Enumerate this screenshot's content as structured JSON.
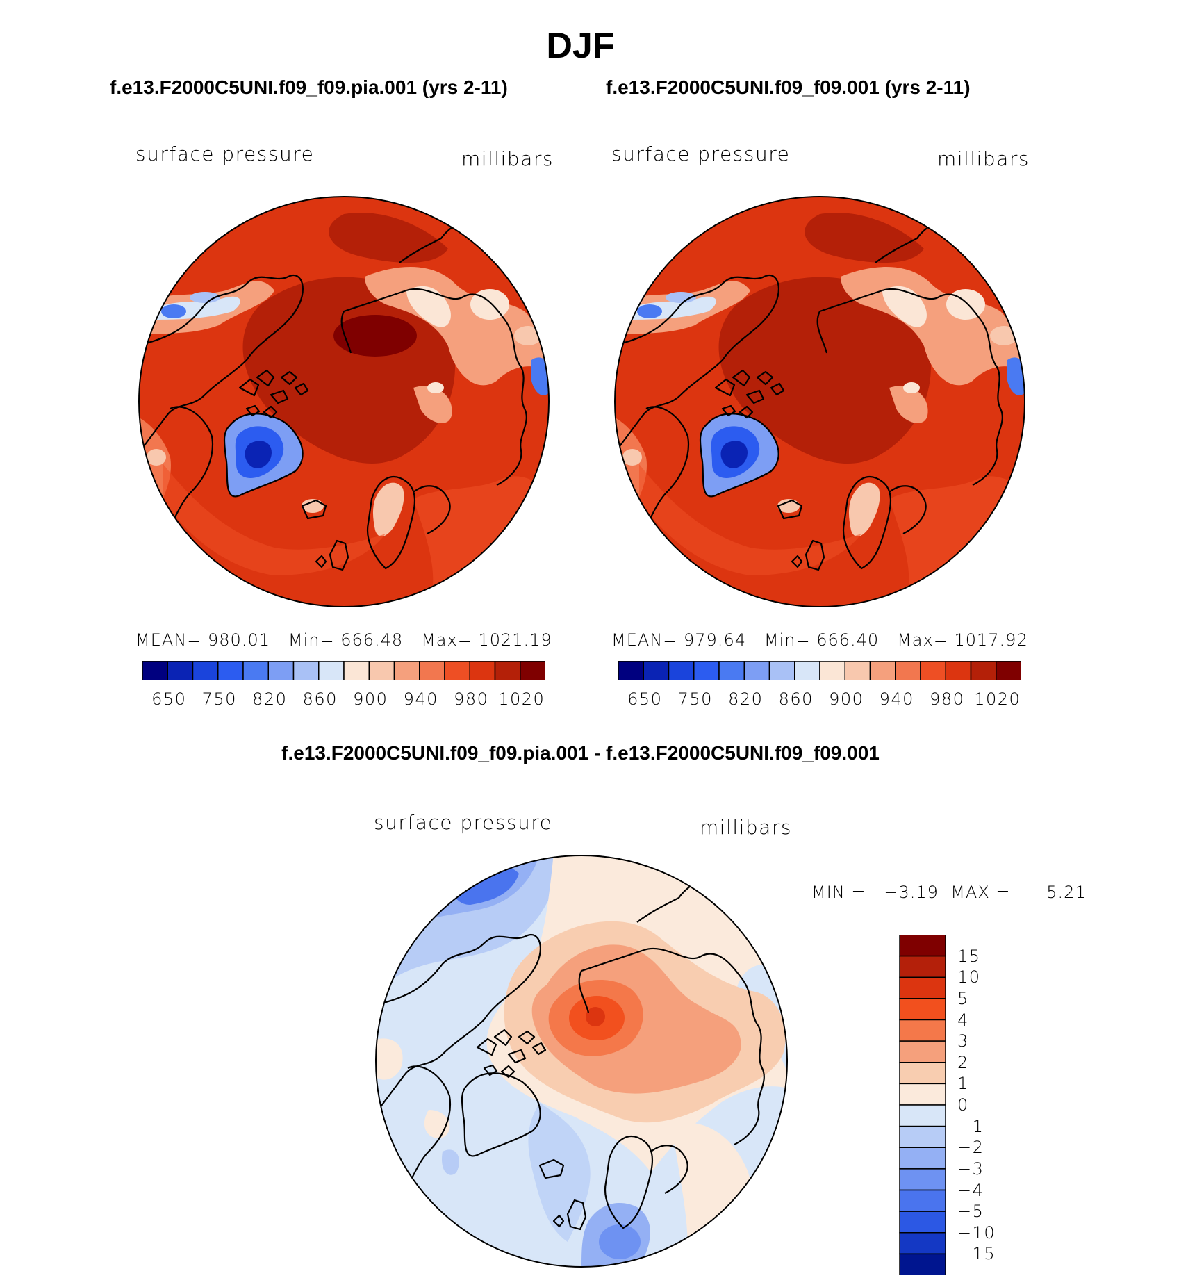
{
  "title": "DJF",
  "panels": [
    {
      "case_title": "f.e13.F2000C5UNI.f09_f09.pia.001 (yrs 2-11)",
      "variable": "surface pressure",
      "units": "millibars",
      "stats": {
        "mean_label": "MEAN=",
        "mean": "980.01",
        "min_label": "Min=",
        "min": "666.48",
        "max_label": "Max=",
        "max": "1021.19"
      }
    },
    {
      "case_title": "f.e13.F2000C5UNI.f09_f09.001 (yrs 2-11)",
      "variable": "surface pressure",
      "units": "millibars",
      "stats": {
        "mean_label": "MEAN=",
        "mean": "979.64",
        "min_label": "Min=",
        "min": "666.40",
        "max_label": "Max=",
        "max": "1017.92"
      }
    }
  ],
  "abs_colorbar": {
    "colors": [
      "#00007f",
      "#0a23b4",
      "#1a44dc",
      "#2c5cf0",
      "#4a7af2",
      "#7d9ef4",
      "#a9c1f6",
      "#d8e6f8",
      "#fbe6d6",
      "#f8c8ae",
      "#f5a07d",
      "#f2774f",
      "#ee4f24",
      "#dc3510",
      "#b42008",
      "#7f0000"
    ],
    "tick_labels": [
      "650",
      "750",
      "820",
      "860",
      "900",
      "940",
      "980",
      "1020"
    ]
  },
  "difference": {
    "title": "f.e13.F2000C5UNI.f09_f09.pia.001 - f.e13.F2000C5UNI.f09_f09.001",
    "variable": "surface pressure",
    "units": "millibars",
    "min_label": "MIN =",
    "min": "−3.19",
    "max_label": "MAX =",
    "max": "5.21",
    "colorbar": {
      "colors": [
        "#7f0000",
        "#b4200a",
        "#dc3510",
        "#f2501e",
        "#f4784a",
        "#f5a07c",
        "#f8cdb0",
        "#fbeadc",
        "#d8e6f8",
        "#b7ccf6",
        "#94b0f4",
        "#6e92f2",
        "#4a74ee",
        "#2c58e4",
        "#1438c4",
        "#00158f"
      ],
      "labels": [
        "15",
        "10",
        "5",
        "4",
        "3",
        "2",
        "1",
        "0",
        "−1",
        "−2",
        "−3",
        "−4",
        "−5",
        "−10",
        "−15"
      ]
    }
  }
}
